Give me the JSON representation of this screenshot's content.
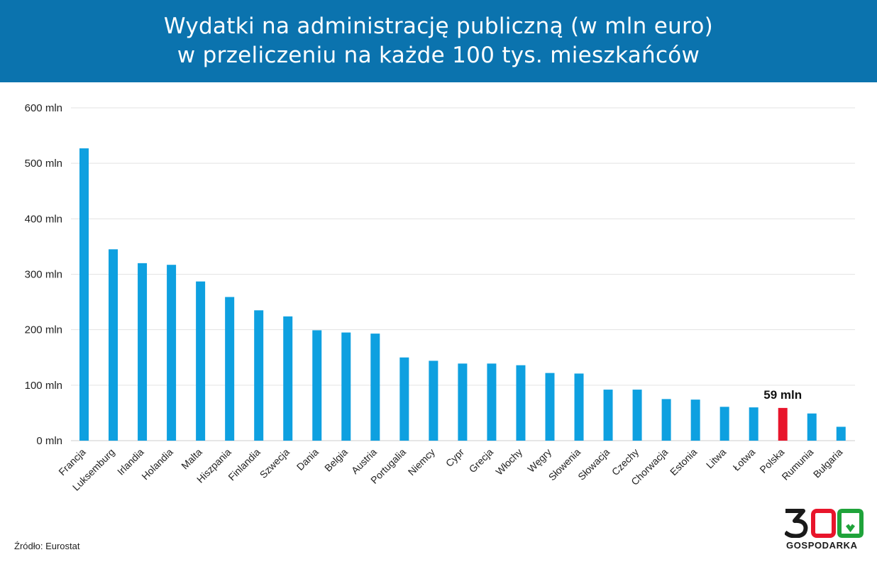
{
  "header": {
    "title_line1": "Wydatki na administrację publiczną (w mln euro)",
    "title_line2": "w przeliczeniu na każde 100 tys. mieszkańców",
    "background_color": "#0b73ae"
  },
  "chart_data": {
    "type": "bar",
    "title": "Wydatki na administrację publiczną (w mln euro) w przeliczeniu na każde 100 tys. mieszkańców",
    "categories": [
      "Francja",
      "Luksemburg",
      "Irlandia",
      "Holandia",
      "Malta",
      "Hiszpania",
      "Finlandia",
      "Szwecja",
      "Dania",
      "Belgia",
      "Austria",
      "Portugalia",
      "Niemcy",
      "Cypr",
      "Grecja",
      "Włochy",
      "Węgry",
      "Słowenia",
      "Słowacja",
      "Czechy",
      "Chorwacja",
      "Estonia",
      "Litwa",
      "Łotwa",
      "Polska",
      "Rumunia",
      "Bułgaria"
    ],
    "values": [
      527,
      345,
      320,
      317,
      287,
      259,
      235,
      224,
      199,
      195,
      193,
      150,
      144,
      139,
      139,
      136,
      122,
      121,
      92,
      92,
      75,
      74,
      61,
      60,
      59,
      49,
      25
    ],
    "yticks": [
      "0 mln",
      "100 mln",
      "200 mln",
      "300 mln",
      "400 mln",
      "500 mln",
      "600 mln"
    ],
    "ylim": [
      0,
      600
    ],
    "grid": true,
    "bar_color": "#0ea0e0",
    "highlight": {
      "category": "Polska",
      "color": "#e8152b",
      "label": "59 mln"
    }
  },
  "source": "Źródło: Eurostat",
  "logo": {
    "digits": "300",
    "word": "GOSPODARKA",
    "color_red": "#e8152b",
    "color_green": "#1fa33a"
  }
}
